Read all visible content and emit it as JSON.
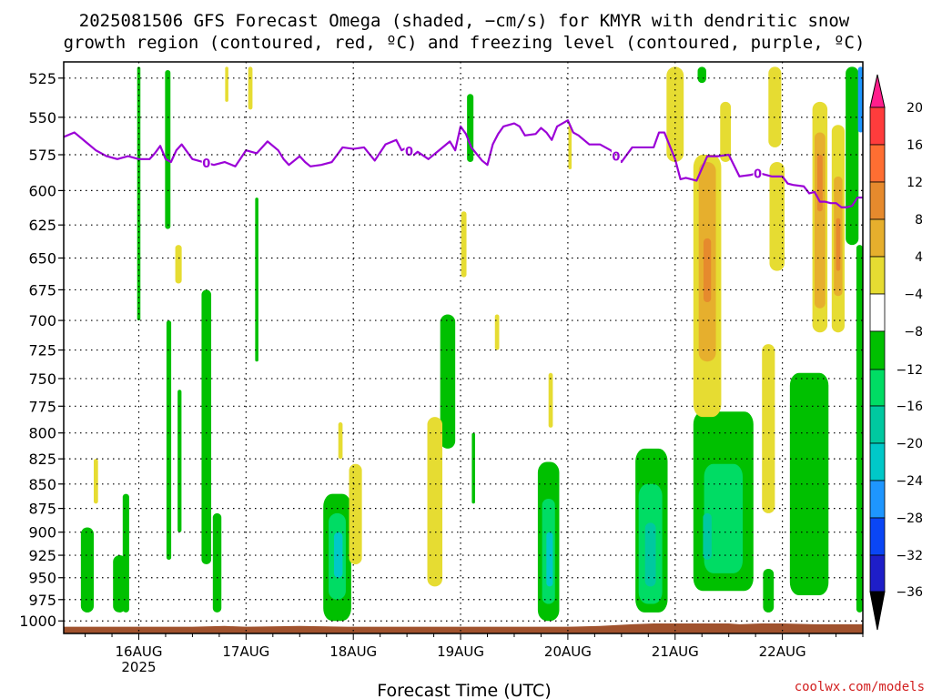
{
  "title_line1": "2025081506 GFS Forecast Omega (shaded, −cm/s) for KMYR with dendritic snow",
  "title_line2": "growth region (contoured, red, ºC) and freezing level (contoured, purple, ºC)",
  "xlabel": "Forecast Time (UTC)",
  "credit": "coolwx.com/models",
  "freezing_label": "0",
  "colors": {
    "green_dark": "#00c000",
    "green_light": "#00dc64",
    "teal": "#00c8a0",
    "cyan": "#00c8c8",
    "blue_light": "#1e96ff",
    "yellow": "#e6dc32",
    "orange_light": "#e6af2d",
    "orange": "#e68a2d",
    "ground": "#a0522d",
    "freezing": "#9b00d7"
  },
  "chart_data": {
    "type": "heatmap",
    "title": "2025081506 GFS Forecast Omega (shaded, −cm/s) for KMYR with dendritic snow growth region (contoured, red, ºC) and freezing level (contoured, purple, ºC)",
    "xlabel": "Forecast Time (UTC)",
    "ylabel": "",
    "x_ticks": [
      {
        "label": "16AUG",
        "day": 16
      },
      {
        "label": "17AUG",
        "day": 17
      },
      {
        "label": "18AUG",
        "day": 18
      },
      {
        "label": "19AUG",
        "day": 19
      },
      {
        "label": "20AUG",
        "day": 20
      },
      {
        "label": "21AUG",
        "day": 21
      },
      {
        "label": "22AUG",
        "day": 22
      }
    ],
    "x_year_label": "2025",
    "xlim_days": [
      15.3,
      22.75
    ],
    "y_ticks": [
      525,
      550,
      575,
      600,
      625,
      650,
      675,
      700,
      725,
      750,
      775,
      800,
      825,
      850,
      875,
      900,
      925,
      950,
      975,
      1000
    ],
    "ylim_hpa": [
      515,
      1015
    ],
    "y_scale": "log-pressure (inverted)",
    "grid": true,
    "colorbar": {
      "labels": [
        "20",
        "16",
        "12",
        "8",
        "4",
        "−4",
        "−8",
        "−12",
        "−16",
        "−20",
        "−24",
        "−28",
        "−32",
        "−36"
      ],
      "colors": [
        "#ff1e8c",
        "#ff3c3c",
        "#ff6e32",
        "#e68a2d",
        "#e6af2d",
        "#e6dc32",
        "#ffffff",
        "#00c000",
        "#00dc64",
        "#00c8a0",
        "#00c8c8",
        "#1e96ff",
        "#0a46f5",
        "#1e1ec8",
        "#6e00c8",
        "#a000c8",
        "#a0a0a0",
        "#000000"
      ]
    },
    "freezing_level": {
      "name": "freezing level (0 ºC)",
      "days": [
        15.3,
        15.4,
        15.5,
        15.6,
        15.7,
        15.8,
        15.9,
        16.0,
        16.1,
        16.15,
        16.2,
        16.25,
        16.3,
        16.35,
        16.4,
        16.5,
        16.55,
        16.6,
        16.7,
        16.8,
        16.9,
        17.0,
        17.1,
        17.2,
        17.3,
        17.35,
        17.4,
        17.5,
        17.55,
        17.6,
        17.7,
        17.8,
        17.9,
        18.0,
        18.1,
        18.2,
        18.3,
        18.4,
        18.45,
        18.5,
        18.55,
        18.6,
        18.7,
        18.8,
        18.9,
        18.95,
        19.0,
        19.05,
        19.1,
        19.2,
        19.25,
        19.3,
        19.35,
        19.4,
        19.5,
        19.55,
        19.6,
        19.7,
        19.75,
        19.8,
        19.85,
        19.9,
        20.0,
        20.05,
        20.1,
        20.2,
        20.3,
        20.4,
        20.5,
        20.6,
        20.7,
        20.8,
        20.85,
        20.9,
        21.0,
        21.05,
        21.1,
        21.15,
        21.2,
        21.3,
        21.4,
        21.5,
        21.6,
        21.7,
        21.75,
        21.8,
        21.9,
        22.0,
        22.05,
        22.1,
        22.2,
        22.25,
        22.3,
        22.35,
        22.4,
        22.45,
        22.5,
        22.55,
        22.6,
        22.65,
        22.7,
        22.75
      ],
      "hpa": [
        563,
        560,
        566,
        572,
        576,
        578,
        576,
        578,
        578,
        574,
        569,
        578,
        580,
        572,
        568,
        578,
        579,
        580,
        582,
        580,
        583,
        572,
        574,
        566,
        572,
        578,
        582,
        576,
        580,
        583,
        582,
        580,
        570,
        571,
        570,
        579,
        568,
        565,
        572,
        570,
        576,
        573,
        578,
        572,
        566,
        572,
        556,
        561,
        570,
        579,
        582,
        568,
        561,
        556,
        554,
        556,
        562,
        561,
        557,
        560,
        565,
        556,
        552,
        560,
        562,
        568,
        568,
        572,
        580,
        570,
        570,
        570,
        560,
        560,
        578,
        592,
        591,
        592,
        593,
        576,
        576,
        575,
        590,
        589,
        588,
        588,
        590,
        590,
        595,
        596,
        597,
        602,
        601,
        608,
        608,
        609,
        609,
        612,
        612,
        611,
        605,
        605
      ]
    },
    "ground": {
      "name": "surface",
      "days": [
        15.3,
        16.0,
        16.5,
        16.8,
        17.0,
        17.5,
        18.0,
        18.5,
        19.0,
        19.5,
        19.8,
        20.0,
        20.3,
        20.6,
        20.8,
        21.0,
        21.3,
        21.5,
        21.6,
        21.8,
        22.0,
        22.3,
        22.5,
        22.75
      ],
      "hpa": [
        1007,
        1007,
        1007,
        1006,
        1007,
        1006,
        1007,
        1007,
        1007,
        1007,
        1007,
        1007,
        1006,
        1004,
        1003,
        1003,
        1003,
        1003,
        1004,
        1003,
        1003,
        1004,
        1004,
        1004
      ]
    },
    "omega_regions": [
      {
        "name": "upward motion",
        "color": "green_dark",
        "day": 16.0,
        "half_width": 0.015,
        "p_top": 518,
        "p_bot": 700
      },
      {
        "name": "upward motion",
        "color": "green_dark",
        "day": 16.27,
        "half_width": 0.025,
        "p_top": 520,
        "p_bot": 628
      },
      {
        "name": "upward motion",
        "color": "green_dark",
        "day": 16.28,
        "half_width": 0.022,
        "p_top": 700,
        "p_bot": 930
      },
      {
        "name": "upward motion",
        "color": "green_dark",
        "day": 16.38,
        "half_width": 0.018,
        "p_top": 760,
        "p_bot": 900
      },
      {
        "name": "upward motion",
        "color": "green_dark",
        "day": 16.63,
        "half_width": 0.045,
        "p_top": 675,
        "p_bot": 935
      },
      {
        "name": "upward motion",
        "color": "green_dark",
        "day": 16.73,
        "half_width": 0.04,
        "p_top": 880,
        "p_bot": 990
      },
      {
        "name": "upward motion",
        "color": "green_dark",
        "day": 17.1,
        "half_width": 0.015,
        "p_top": 605,
        "p_bot": 735
      },
      {
        "name": "upward motion",
        "color": "green_dark",
        "day": 15.52,
        "half_width": 0.06,
        "p_top": 895,
        "p_bot": 990
      },
      {
        "name": "upward motion",
        "color": "green_dark",
        "day": 15.82,
        "half_width": 0.06,
        "p_top": 925,
        "p_bot": 990
      },
      {
        "name": "upward motion",
        "color": "green_dark",
        "day": 15.88,
        "half_width": 0.03,
        "p_top": 860,
        "p_bot": 990
      },
      {
        "name": "upward motion",
        "color": "green_dark",
        "day": 17.85,
        "half_width": 0.13,
        "p_top": 860,
        "p_bot": 1000
      },
      {
        "name": "upward motion",
        "color": "green_light",
        "day": 17.85,
        "half_width": 0.08,
        "p_top": 880,
        "p_bot": 975
      },
      {
        "name": "upward motion",
        "color": "cyan",
        "day": 17.86,
        "half_width": 0.04,
        "p_top": 900,
        "p_bot": 950
      },
      {
        "name": "upward motion",
        "color": "green_dark",
        "day": 18.88,
        "half_width": 0.07,
        "p_top": 695,
        "p_bot": 815
      },
      {
        "name": "upward motion",
        "color": "green_dark",
        "day": 19.09,
        "half_width": 0.03,
        "p_top": 535,
        "p_bot": 580
      },
      {
        "name": "upward motion",
        "color": "green_dark",
        "day": 19.12,
        "half_width": 0.015,
        "p_top": 800,
        "p_bot": 870
      },
      {
        "name": "upward motion",
        "color": "green_dark",
        "day": 19.82,
        "half_width": 0.1,
        "p_top": 828,
        "p_bot": 1000
      },
      {
        "name": "upward motion",
        "color": "green_light",
        "day": 19.82,
        "half_width": 0.06,
        "p_top": 865,
        "p_bot": 980
      },
      {
        "name": "upward motion",
        "color": "cyan",
        "day": 19.83,
        "half_width": 0.03,
        "p_top": 900,
        "p_bot": 960
      },
      {
        "name": "upward motion",
        "color": "green_dark",
        "day": 20.78,
        "half_width": 0.15,
        "p_top": 815,
        "p_bot": 990
      },
      {
        "name": "upward motion",
        "color": "green_light",
        "day": 20.77,
        "half_width": 0.11,
        "p_top": 850,
        "p_bot": 980
      },
      {
        "name": "upward motion",
        "color": "teal",
        "day": 20.77,
        "half_width": 0.05,
        "p_top": 890,
        "p_bot": 960
      },
      {
        "name": "upward motion",
        "color": "green_dark",
        "day": 21.45,
        "half_width": 0.28,
        "p_top": 780,
        "p_bot": 965
      },
      {
        "name": "upward motion",
        "color": "green_light",
        "day": 21.45,
        "half_width": 0.18,
        "p_top": 830,
        "p_bot": 945
      },
      {
        "name": "upward motion",
        "color": "teal",
        "day": 21.3,
        "half_width": 0.04,
        "p_top": 880,
        "p_bot": 930
      },
      {
        "name": "upward motion",
        "color": "green_dark",
        "day": 21.25,
        "half_width": 0.04,
        "p_top": 518,
        "p_bot": 528
      },
      {
        "name": "upward motion",
        "color": "green_dark",
        "day": 22.25,
        "half_width": 0.18,
        "p_top": 745,
        "p_bot": 970
      },
      {
        "name": "upward motion",
        "color": "green_dark",
        "day": 21.87,
        "half_width": 0.05,
        "p_top": 940,
        "p_bot": 990
      },
      {
        "name": "upward motion",
        "color": "green_dark",
        "day": 22.65,
        "half_width": 0.06,
        "p_top": 518,
        "p_bot": 640
      },
      {
        "name": "upward motion",
        "color": "green_dark",
        "day": 22.72,
        "half_width": 0.03,
        "p_top": 640,
        "p_bot": 990
      },
      {
        "name": "upward motion",
        "color": "blue_light",
        "day": 22.73,
        "half_width": 0.025,
        "p_top": 518,
        "p_bot": 560
      },
      {
        "name": "downward motion",
        "color": "yellow",
        "day": 15.6,
        "half_width": 0.02,
        "p_top": 825,
        "p_bot": 870
      },
      {
        "name": "downward motion",
        "color": "yellow",
        "day": 16.37,
        "half_width": 0.03,
        "p_top": 640,
        "p_bot": 670
      },
      {
        "name": "downward motion",
        "color": "yellow",
        "day": 16.82,
        "half_width": 0.015,
        "p_top": 518,
        "p_bot": 540
      },
      {
        "name": "downward motion",
        "color": "yellow",
        "day": 17.04,
        "half_width": 0.02,
        "p_top": 518,
        "p_bot": 545
      },
      {
        "name": "downward motion",
        "color": "yellow",
        "day": 17.88,
        "half_width": 0.02,
        "p_top": 790,
        "p_bot": 825
      },
      {
        "name": "downward motion",
        "color": "yellow",
        "day": 18.02,
        "half_width": 0.06,
        "p_top": 830,
        "p_bot": 935
      },
      {
        "name": "downward motion",
        "color": "yellow",
        "day": 18.76,
        "half_width": 0.07,
        "p_top": 785,
        "p_bot": 960
      },
      {
        "name": "downward motion",
        "color": "yellow",
        "day": 19.03,
        "half_width": 0.025,
        "p_top": 615,
        "p_bot": 665
      },
      {
        "name": "downward motion",
        "color": "yellow",
        "day": 19.34,
        "half_width": 0.02,
        "p_top": 695,
        "p_bot": 725
      },
      {
        "name": "downward motion",
        "color": "yellow",
        "day": 19.84,
        "half_width": 0.02,
        "p_top": 745,
        "p_bot": 795
      },
      {
        "name": "downward motion",
        "color": "yellow",
        "day": 20.02,
        "half_width": 0.015,
        "p_top": 555,
        "p_bot": 585
      },
      {
        "name": "downward motion",
        "color": "yellow",
        "day": 21.0,
        "half_width": 0.08,
        "p_top": 518,
        "p_bot": 580
      },
      {
        "name": "downward motion",
        "color": "yellow",
        "day": 21.3,
        "half_width": 0.13,
        "p_top": 575,
        "p_bot": 785
      },
      {
        "name": "downward motion",
        "color": "orange_light",
        "day": 21.3,
        "half_width": 0.08,
        "p_top": 580,
        "p_bot": 735
      },
      {
        "name": "downward motion",
        "color": "orange",
        "day": 21.3,
        "half_width": 0.035,
        "p_top": 635,
        "p_bot": 685
      },
      {
        "name": "downward motion",
        "color": "yellow",
        "day": 21.47,
        "half_width": 0.05,
        "p_top": 540,
        "p_bot": 580
      },
      {
        "name": "downward motion",
        "color": "yellow",
        "day": 21.87,
        "half_width": 0.06,
        "p_top": 720,
        "p_bot": 880
      },
      {
        "name": "downward motion",
        "color": "yellow",
        "day": 21.93,
        "half_width": 0.06,
        "p_top": 518,
        "p_bot": 570
      },
      {
        "name": "downward motion",
        "color": "yellow",
        "day": 21.95,
        "half_width": 0.07,
        "p_top": 580,
        "p_bot": 660
      },
      {
        "name": "downward motion",
        "color": "yellow",
        "day": 22.35,
        "half_width": 0.07,
        "p_top": 540,
        "p_bot": 710
      },
      {
        "name": "downward motion",
        "color": "orange_light",
        "day": 22.35,
        "half_width": 0.05,
        "p_top": 560,
        "p_bot": 690
      },
      {
        "name": "downward motion",
        "color": "orange",
        "day": 22.35,
        "half_width": 0.025,
        "p_top": 575,
        "p_bot": 615
      },
      {
        "name": "downward motion",
        "color": "yellow",
        "day": 22.52,
        "half_width": 0.06,
        "p_top": 555,
        "p_bot": 710
      },
      {
        "name": "downward motion",
        "color": "orange_light",
        "day": 22.52,
        "half_width": 0.04,
        "p_top": 590,
        "p_bot": 680
      },
      {
        "name": "downward motion",
        "color": "orange",
        "day": 22.52,
        "half_width": 0.02,
        "p_top": 620,
        "p_bot": 660
      }
    ]
  }
}
